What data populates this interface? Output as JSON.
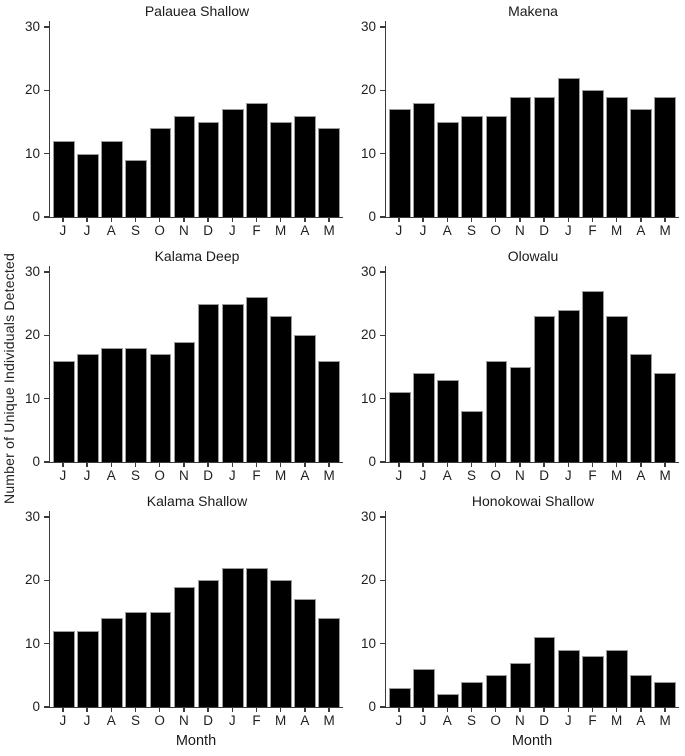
{
  "figure": {
    "ylabel": "Number of Unique Individuals Detected",
    "xlabel": "Month",
    "colors": {
      "bar_fill": "#000000",
      "bar_border": "#9c9c9c",
      "axis": "#3a3a3a",
      "text": "#1f1f1f",
      "background": "#ffffff"
    }
  },
  "chart_data": [
    {
      "type": "bar",
      "title": "Palauea Shallow",
      "categories": [
        "J",
        "J",
        "A",
        "S",
        "O",
        "N",
        "D",
        "J",
        "F",
        "M",
        "A",
        "M"
      ],
      "values": [
        12,
        10,
        12,
        9,
        14,
        16,
        15,
        17,
        18,
        15,
        16,
        14
      ],
      "xlabel": "",
      "ylabel": "Number of Unique Individuals Detected",
      "ylim": [
        0,
        30
      ],
      "yticks": [
        0,
        10,
        20,
        30
      ],
      "show_xlabel": false
    },
    {
      "type": "bar",
      "title": "Makena",
      "categories": [
        "J",
        "J",
        "A",
        "S",
        "O",
        "N",
        "D",
        "J",
        "F",
        "M",
        "A",
        "M"
      ],
      "values": [
        17,
        18,
        15,
        16,
        16,
        19,
        19,
        22,
        20,
        19,
        17,
        19
      ],
      "xlabel": "",
      "ylabel": "Number of Unique Individuals Detected",
      "ylim": [
        0,
        30
      ],
      "yticks": [
        0,
        10,
        20,
        30
      ],
      "show_xlabel": false
    },
    {
      "type": "bar",
      "title": "Kalama Deep",
      "categories": [
        "J",
        "J",
        "A",
        "S",
        "O",
        "N",
        "D",
        "J",
        "F",
        "M",
        "A",
        "M"
      ],
      "values": [
        16,
        17,
        18,
        18,
        17,
        19,
        25,
        25,
        26,
        23,
        20,
        16
      ],
      "xlabel": "",
      "ylabel": "Number of Unique Individuals Detected",
      "ylim": [
        0,
        30
      ],
      "yticks": [
        0,
        10,
        20,
        30
      ],
      "show_xlabel": false
    },
    {
      "type": "bar",
      "title": "Olowalu",
      "categories": [
        "J",
        "J",
        "A",
        "S",
        "O",
        "N",
        "D",
        "J",
        "F",
        "M",
        "A",
        "M"
      ],
      "values": [
        11,
        14,
        13,
        8,
        16,
        15,
        23,
        24,
        27,
        23,
        17,
        14
      ],
      "xlabel": "",
      "ylabel": "Number of Unique Individuals Detected",
      "ylim": [
        0,
        30
      ],
      "yticks": [
        0,
        10,
        20,
        30
      ],
      "show_xlabel": false
    },
    {
      "type": "bar",
      "title": "Kalama Shallow",
      "categories": [
        "J",
        "J",
        "A",
        "S",
        "O",
        "N",
        "D",
        "J",
        "F",
        "M",
        "A",
        "M"
      ],
      "values": [
        12,
        12,
        14,
        15,
        15,
        19,
        20,
        22,
        22,
        20,
        17,
        14
      ],
      "xlabel": "Month",
      "ylabel": "Number of Unique Individuals Detected",
      "ylim": [
        0,
        30
      ],
      "yticks": [
        0,
        10,
        20,
        30
      ],
      "show_xlabel": true
    },
    {
      "type": "bar",
      "title": "Honokowai Shallow",
      "categories": [
        "J",
        "J",
        "A",
        "S",
        "O",
        "N",
        "D",
        "J",
        "F",
        "M",
        "A",
        "M"
      ],
      "values": [
        3,
        6,
        2,
        4,
        5,
        7,
        11,
        9,
        8,
        9,
        5,
        4
      ],
      "xlabel": "Month",
      "ylabel": "Number of Unique Individuals Detected",
      "ylim": [
        0,
        30
      ],
      "yticks": [
        0,
        10,
        20,
        30
      ],
      "show_xlabel": true
    }
  ]
}
